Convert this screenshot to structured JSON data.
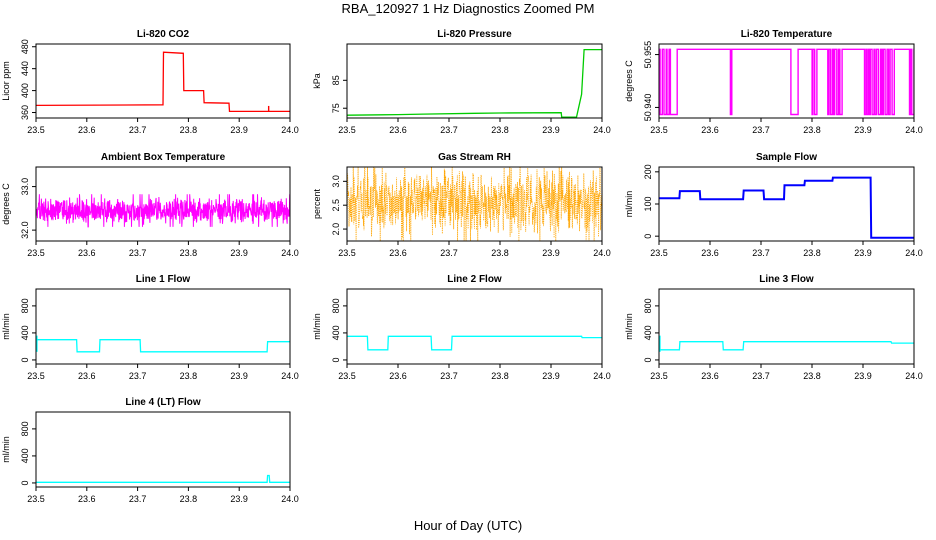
{
  "title": "RBA_120927  1 Hz Diagnostics Zoomed PM",
  "xlabel": "Hour of Day (UTC)",
  "colors": {
    "red": "#ff0000",
    "green": "#00cc00",
    "magenta": "#ff00ff",
    "orange": "#ffa500",
    "blue": "#0000ff",
    "cyan": "#00ffff"
  },
  "chart_data": [
    {
      "type": "line",
      "title": "Li-820 CO2",
      "ylabel": "Licor ppm",
      "xlim": [
        23.5,
        24.0
      ],
      "ylim": [
        350,
        485
      ],
      "xticks": [
        "23.5",
        "23.6",
        "23.7",
        "23.8",
        "23.9",
        "24.0"
      ],
      "yticks": [
        "360",
        "400",
        "440",
        "480"
      ],
      "ytick_values": [
        360,
        400,
        440,
        480
      ],
      "color": "#ff0000",
      "series": [
        {
          "x": [
            23.5,
            23.75,
            23.751,
            23.79,
            23.791,
            23.83,
            23.831,
            23.88,
            23.881,
            24.0
          ],
          "y": [
            373,
            374,
            470,
            468,
            400,
            400,
            378,
            377,
            362,
            362
          ]
        }
      ]
    },
    {
      "type": "line",
      "title": "Li-820 Pressure",
      "ylabel": "kPa",
      "xlim": [
        23.5,
        24.0
      ],
      "ylim": [
        71.5,
        98
      ],
      "xticks": [
        "23.5",
        "23.6",
        "23.7",
        "23.8",
        "23.9",
        "24.0"
      ],
      "yticks": [
        "75",
        "85"
      ],
      "ytick_values": [
        75,
        85
      ],
      "color": "#00cc00",
      "series": [
        {
          "x": [
            23.5,
            23.6,
            23.65,
            23.75,
            23.8,
            23.92,
            23.921,
            23.95,
            23.96,
            23.965,
            24.0
          ],
          "y": [
            72.5,
            72.7,
            72.9,
            73.2,
            73.3,
            73.4,
            71.8,
            71.8,
            80,
            96,
            96
          ]
        }
      ]
    },
    {
      "type": "line",
      "title": "Li-820 Temperature",
      "ylabel": "degrees C",
      "xlim": [
        23.5,
        24.0
      ],
      "ylim": [
        50.937,
        50.958
      ],
      "xticks": [
        "23.5",
        "23.6",
        "23.7",
        "23.8",
        "23.9",
        "24.0"
      ],
      "yticks": [
        "50.940",
        "50.955"
      ],
      "ytick_values": [
        50.94,
        50.955
      ],
      "color": "#ff00ff",
      "series": [
        {
          "x": [
            23.5,
            24.0
          ],
          "y": [
            50.9565,
            50.938
          ]
        }
      ]
    },
    {
      "type": "line",
      "title": "Ambient Box Temperature",
      "ylabel": "degrees C",
      "xlim": [
        23.5,
        24.0
      ],
      "ylim": [
        31.75,
        33.45
      ],
      "xticks": [
        "23.5",
        "23.6",
        "23.7",
        "23.8",
        "23.9",
        "24.0"
      ],
      "yticks": [
        "32.0",
        "33.0"
      ],
      "ytick_values": [
        32.0,
        33.0
      ],
      "color": "#ff00ff",
      "series": [
        {
          "x": [
            23.5,
            24.0
          ],
          "y": [
            32.2,
            32.7
          ]
        }
      ]
    },
    {
      "type": "line",
      "title": "Gas Stream RH",
      "ylabel": "percent",
      "xlim": [
        23.5,
        24.0
      ],
      "ylim": [
        1.75,
        3.3
      ],
      "xticks": [
        "23.5",
        "23.6",
        "23.7",
        "23.8",
        "23.9",
        "24.0"
      ],
      "yticks": [
        "2.0",
        "2.5",
        "3.0"
      ],
      "ytick_values": [
        2.0,
        2.5,
        3.0
      ],
      "color": "#ffa500",
      "series": [
        {
          "x": [
            23.5,
            24.0
          ],
          "y": [
            2.0,
            3.1
          ]
        }
      ]
    },
    {
      "type": "line",
      "title": "Sample Flow",
      "ylabel": "ml/min",
      "xlim": [
        23.5,
        24.0
      ],
      "ylim": [
        -15,
        215
      ],
      "xticks": [
        "23.5",
        "23.6",
        "23.7",
        "23.8",
        "23.9",
        "24.0"
      ],
      "yticks": [
        "0",
        "100",
        "200"
      ],
      "ytick_values": [
        0,
        100,
        200
      ],
      "color": "#0000ff",
      "series": [
        {
          "x": [
            23.5,
            23.54,
            23.541,
            23.58,
            23.581,
            23.665,
            23.666,
            23.705,
            23.706,
            23.745,
            23.746,
            23.785,
            23.786,
            23.84,
            23.841,
            23.915,
            23.916,
            24.0
          ],
          "y": [
            118,
            118,
            140,
            140,
            115,
            115,
            142,
            142,
            115,
            115,
            158,
            158,
            172,
            172,
            182,
            182,
            -5,
            -5
          ]
        }
      ]
    },
    {
      "type": "line",
      "title": "Line 1 Flow",
      "ylabel": "ml/min",
      "xlim": [
        23.5,
        24.0
      ],
      "ylim": [
        -60,
        1050
      ],
      "xticks": [
        "23.5",
        "23.6",
        "23.7",
        "23.8",
        "23.9",
        "24.0"
      ],
      "yticks": [
        "0",
        "400",
        "800"
      ],
      "ytick_values": [
        0,
        400,
        800
      ],
      "color": "#00ffff",
      "series": [
        {
          "x": [
            23.5,
            23.58,
            23.581,
            23.625,
            23.626,
            23.705,
            23.706,
            23.955,
            23.956,
            24.0
          ],
          "y": [
            300,
            300,
            120,
            120,
            300,
            300,
            120,
            120,
            270,
            270
          ]
        }
      ]
    },
    {
      "type": "line",
      "title": "Line 2 Flow",
      "ylabel": "ml/min",
      "xlim": [
        23.5,
        24.0
      ],
      "ylim": [
        -60,
        1050
      ],
      "xticks": [
        "23.5",
        "23.6",
        "23.7",
        "23.8",
        "23.9",
        "24.0"
      ],
      "yticks": [
        "0",
        "400",
        "800"
      ],
      "ytick_values": [
        0,
        400,
        800
      ],
      "color": "#00ffff",
      "series": [
        {
          "x": [
            23.5,
            23.54,
            23.541,
            23.58,
            23.581,
            23.665,
            23.666,
            23.705,
            23.706,
            23.96,
            23.961,
            24.0
          ],
          "y": [
            350,
            350,
            150,
            150,
            350,
            350,
            150,
            150,
            350,
            350,
            330,
            330
          ]
        }
      ]
    },
    {
      "type": "line",
      "title": "Line 3 Flow",
      "ylabel": "ml/min",
      "xlim": [
        23.5,
        24.0
      ],
      "ylim": [
        -60,
        1050
      ],
      "xticks": [
        "23.5",
        "23.6",
        "23.7",
        "23.8",
        "23.9",
        "24.0"
      ],
      "yticks": [
        "0",
        "400",
        "800"
      ],
      "ytick_values": [
        0,
        400,
        800
      ],
      "color": "#00ffff",
      "series": [
        {
          "x": [
            23.5,
            23.54,
            23.541,
            23.625,
            23.626,
            23.665,
            23.666,
            23.955,
            23.956,
            24.0
          ],
          "y": [
            150,
            150,
            270,
            270,
            150,
            150,
            270,
            270,
            250,
            250
          ]
        }
      ]
    },
    {
      "type": "line",
      "title": "Line 4 (LT) Flow",
      "ylabel": "ml/min",
      "xlim": [
        23.5,
        24.0
      ],
      "ylim": [
        -60,
        1050
      ],
      "xticks": [
        "23.5",
        "23.6",
        "23.7",
        "23.8",
        "23.9",
        "24.0"
      ],
      "yticks": [
        "0",
        "400",
        "800"
      ],
      "ytick_values": [
        0,
        400,
        800
      ],
      "color": "#00ffff",
      "series": [
        {
          "x": [
            23.5,
            23.955,
            23.956,
            23.959,
            23.96,
            24.0
          ],
          "y": [
            10,
            10,
            110,
            110,
            10,
            10
          ]
        }
      ]
    }
  ]
}
